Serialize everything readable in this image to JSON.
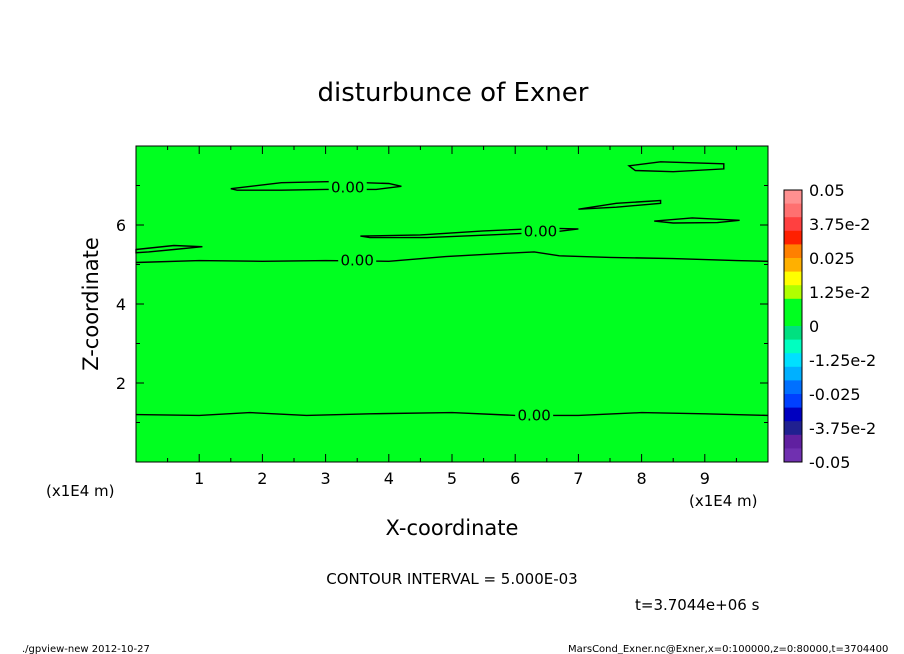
{
  "figure": {
    "title": "disturbunce of Exner",
    "x_axis_title": "X-coordinate",
    "y_axis_title": "Z-coordinate",
    "x_unit_left": "(x1E4 m)",
    "x_unit_right": "(x1E4 m)",
    "contour_interval_text": "CONTOUR INTERVAL = 5.000E-03",
    "time_text": "t=3.7044e+06 s",
    "footer_left": "./gpview-new  2012-10-27",
    "footer_right": "MarsCond_Exner.nc@Exner,x=0:100000,z=0:80000,t=3704400"
  },
  "chart_data": {
    "type": "heatmap",
    "title": "disturbunce of Exner",
    "xlabel": "X-coordinate",
    "ylabel": "Z-coordinate",
    "x_unit": "x1E4 m",
    "xlim": [
      0,
      10
    ],
    "ylim": [
      0,
      8
    ],
    "x_ticks": [
      1,
      2,
      3,
      4,
      5,
      6,
      7,
      8,
      9
    ],
    "y_ticks": [
      2,
      4,
      6
    ],
    "field_value": 0,
    "field_color": "#00ff20",
    "contour_interval": 0.005,
    "contours": [
      {
        "label": "0.00",
        "label_at": [
          6.3,
          1.18
        ],
        "points": [
          [
            0,
            1.2
          ],
          [
            1.0,
            1.18
          ],
          [
            1.8,
            1.25
          ],
          [
            2.7,
            1.18
          ],
          [
            3.7,
            1.22
          ],
          [
            5.0,
            1.25
          ],
          [
            6.0,
            1.18
          ],
          [
            7.0,
            1.18
          ],
          [
            8.0,
            1.25
          ],
          [
            9.0,
            1.22
          ],
          [
            10.0,
            1.18
          ]
        ]
      },
      {
        "label": "0.00",
        "label_at": [
          3.5,
          5.1
        ],
        "points": [
          [
            0,
            5.05
          ],
          [
            1.0,
            5.1
          ],
          [
            2.0,
            5.08
          ],
          [
            3.0,
            5.1
          ],
          [
            4.0,
            5.08
          ],
          [
            4.9,
            5.2
          ],
          [
            5.8,
            5.28
          ],
          [
            6.3,
            5.32
          ],
          [
            6.7,
            5.22
          ],
          [
            7.5,
            5.18
          ],
          [
            8.5,
            5.15
          ],
          [
            9.5,
            5.1
          ],
          [
            10.0,
            5.08
          ]
        ]
      },
      {
        "label": "0.00",
        "label_at": [
          3.35,
          6.95
        ],
        "closed": true,
        "points": [
          [
            1.5,
            6.92
          ],
          [
            2.3,
            7.07
          ],
          [
            3.1,
            7.1
          ],
          [
            4.0,
            7.05
          ],
          [
            4.2,
            6.98
          ],
          [
            3.8,
            6.9
          ],
          [
            3.0,
            6.9
          ],
          [
            2.3,
            6.88
          ],
          [
            1.6,
            6.88
          ]
        ]
      },
      {
        "label": "0.00",
        "label_at": [
          6.4,
          5.83
        ],
        "closed": true,
        "points": [
          [
            3.55,
            5.72
          ],
          [
            4.5,
            5.75
          ],
          [
            5.5,
            5.85
          ],
          [
            6.5,
            5.92
          ],
          [
            7.0,
            5.9
          ],
          [
            6.6,
            5.82
          ],
          [
            5.6,
            5.75
          ],
          [
            4.6,
            5.68
          ],
          [
            3.7,
            5.68
          ]
        ]
      },
      {
        "closed": true,
        "points": [
          [
            0,
            5.38
          ],
          [
            0.6,
            5.48
          ],
          [
            1.05,
            5.45
          ],
          [
            0.6,
            5.38
          ],
          [
            0.2,
            5.32
          ],
          [
            0,
            5.3
          ]
        ]
      },
      {
        "closed": true,
        "points": [
          [
            7.0,
            6.4
          ],
          [
            7.6,
            6.55
          ],
          [
            8.3,
            6.62
          ],
          [
            8.3,
            6.55
          ],
          [
            7.6,
            6.45
          ]
        ]
      },
      {
        "closed": true,
        "points": [
          [
            7.8,
            7.5
          ],
          [
            8.3,
            7.6
          ],
          [
            9.3,
            7.55
          ],
          [
            9.3,
            7.42
          ],
          [
            8.5,
            7.35
          ],
          [
            7.9,
            7.38
          ]
        ]
      },
      {
        "closed": true,
        "points": [
          [
            8.2,
            6.1
          ],
          [
            8.8,
            6.18
          ],
          [
            9.55,
            6.12
          ],
          [
            9.2,
            6.06
          ],
          [
            8.5,
            6.05
          ]
        ]
      }
    ],
    "colorbar": {
      "levels": [
        "0.05",
        "3.75e-2",
        "0.025",
        "1.25e-2",
        "0",
        "-1.25e-2",
        "-0.025",
        "-3.75e-2",
        "-0.05"
      ],
      "colors": [
        "#ff9090",
        "#ff7070",
        "#ff4040",
        "#ff2000",
        "#ff8000",
        "#ffb000",
        "#ffff00",
        "#b0ff00",
        "#00ff20",
        "#00ff20",
        "#00e080",
        "#00ffc0",
        "#00e0ff",
        "#00b0ff",
        "#0070ff",
        "#0040ff",
        "#0000c0",
        "#202090",
        "#6020a0",
        "#7030b0"
      ]
    }
  }
}
